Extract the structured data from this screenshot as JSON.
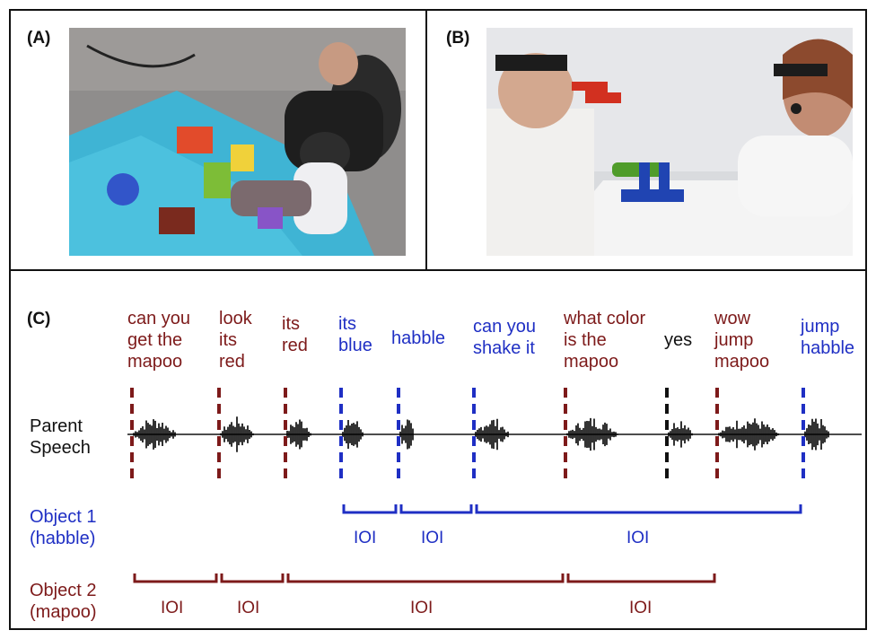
{
  "panels": {
    "a_label": "(A)",
    "b_label": "(B)",
    "c_label": "(C)"
  },
  "colors": {
    "object1": "#1f2fc4",
    "object2": "#7d1a1a",
    "neutral": "#111111"
  },
  "speech_label": "Parent\nSpeech",
  "object1_label": "Object 1\n(habble)",
  "object2_label": "Object 2\n(mapoo)",
  "utterances": [
    {
      "text": "can you\nget the\nmapoo",
      "object": "object2"
    },
    {
      "text": "look\nits\nred",
      "object": "object2"
    },
    {
      "text": "its\nred",
      "object": "object2"
    },
    {
      "text": "its\nblue",
      "object": "object1"
    },
    {
      "text": "habble",
      "object": "object1"
    },
    {
      "text": "can you\nshake it",
      "object": "object1"
    },
    {
      "text": "what color\nis the\nmapoo",
      "object": "object2"
    },
    {
      "text": "yes",
      "object": "neutral"
    },
    {
      "text": "wow\njump\nmapoo",
      "object": "object2"
    },
    {
      "text": "jump\nhabble",
      "object": "object1"
    }
  ],
  "ioi_label": "IOI"
}
